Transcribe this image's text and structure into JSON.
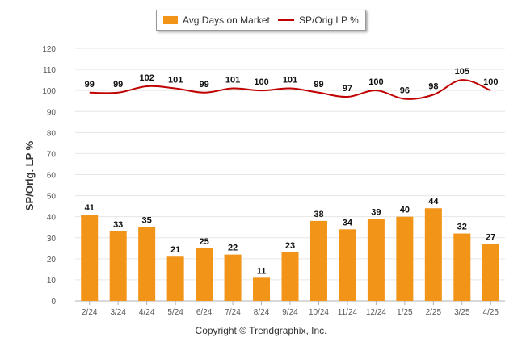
{
  "colors": {
    "bar": "#f29418",
    "line": "#c00000",
    "grid": "#e6e6e6",
    "axis": "#666666"
  },
  "legend": {
    "bar_label": "Avg Days on Market",
    "line_label": "SP/Orig LP %"
  },
  "copyright": "Copyright © Trendgraphix, Inc.",
  "chart_data": {
    "type": "bar",
    "title": "",
    "xlabel": "",
    "ylabel": "SP/Orig. LP %",
    "ylim": [
      0,
      120
    ],
    "yticks": [
      0,
      10,
      20,
      30,
      40,
      50,
      60,
      70,
      80,
      90,
      100,
      110,
      120
    ],
    "grid": true,
    "legend_position": "top",
    "categories": [
      "2/24",
      "3/24",
      "4/24",
      "5/24",
      "6/24",
      "7/24",
      "8/24",
      "9/24",
      "10/24",
      "11/24",
      "12/24",
      "1/25",
      "2/25",
      "3/25",
      "4/25"
    ],
    "series": [
      {
        "name": "Avg Days on Market",
        "type": "bar",
        "values": [
          41,
          33,
          35,
          21,
          25,
          22,
          11,
          23,
          38,
          34,
          39,
          40,
          44,
          32,
          27
        ]
      },
      {
        "name": "SP/Orig LP %",
        "type": "line",
        "values": [
          99,
          99,
          102,
          101,
          99,
          101,
          100,
          101,
          99,
          97,
          100,
          96,
          98,
          105,
          100
        ]
      }
    ]
  }
}
